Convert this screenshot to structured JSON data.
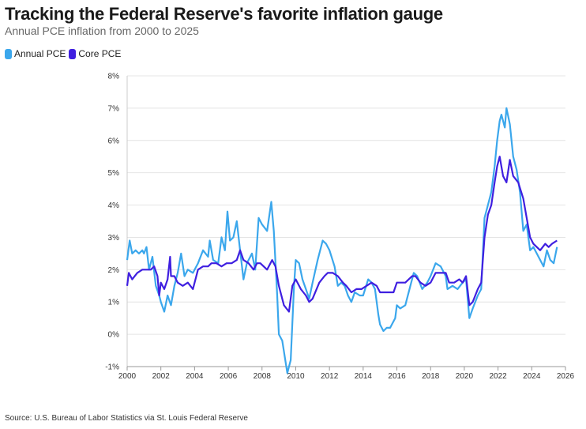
{
  "chart_data": {
    "type": "line",
    "title": "Tracking the Federal Reserve's favorite inflation gauge",
    "subtitle": "Annual PCE inflation from 2000 to 2025",
    "xlabel": "",
    "ylabel": "",
    "xlim": [
      2000,
      2026
    ],
    "ylim": [
      -1,
      8
    ],
    "x_ticks": [
      "2000",
      "2002",
      "2004",
      "2006",
      "2008",
      "2010",
      "2012",
      "2014",
      "2016",
      "2018",
      "2020",
      "2022",
      "2024",
      "2026"
    ],
    "y_ticks": [
      "-1%",
      "0%",
      "1%",
      "2%",
      "3%",
      "4%",
      "5%",
      "6%",
      "7%",
      "8%"
    ],
    "grid": true,
    "legend_position": "top-left",
    "source": "Source: U.S. Bureau of Labor Statistics via St. Louis Federal Reserve",
    "series": [
      {
        "name": "Annual PCE",
        "color": "#3ba7ec",
        "x": [
          2000.0,
          2000.15,
          2000.3,
          2000.5,
          2000.7,
          2000.9,
          2001.0,
          2001.15,
          2001.3,
          2001.5,
          2001.7,
          2001.9,
          2002.0,
          2002.2,
          2002.4,
          2002.6,
          2002.8,
          2003.0,
          2003.2,
          2003.4,
          2003.6,
          2003.9,
          2004.2,
          2004.5,
          2004.8,
          2004.9,
          2005.1,
          2005.4,
          2005.6,
          2005.8,
          2005.95,
          2006.1,
          2006.3,
          2006.5,
          2006.7,
          2006.9,
          2007.1,
          2007.4,
          2007.6,
          2007.8,
          2008.0,
          2008.3,
          2008.55,
          2008.7,
          2008.9,
          2009.0,
          2009.2,
          2009.5,
          2009.7,
          2009.9,
          2010.0,
          2010.2,
          2010.4,
          2010.6,
          2010.8,
          2011.0,
          2011.3,
          2011.6,
          2011.8,
          2012.0,
          2012.3,
          2012.5,
          2012.7,
          2012.9,
          2013.1,
          2013.3,
          2013.5,
          2013.8,
          2014.0,
          2014.3,
          2014.5,
          2014.7,
          2014.9,
          2015.0,
          2015.2,
          2015.4,
          2015.6,
          2015.9,
          2016.0,
          2016.2,
          2016.5,
          2016.8,
          2017.0,
          2017.2,
          2017.5,
          2017.8,
          2018.0,
          2018.3,
          2018.6,
          2018.9,
          2019.0,
          2019.3,
          2019.6,
          2019.9,
          2020.1,
          2020.3,
          2020.5,
          2020.8,
          2021.0,
          2021.2,
          2021.4,
          2021.6,
          2021.8,
          2021.95,
          2022.1,
          2022.2,
          2022.4,
          2022.5,
          2022.7,
          2022.9,
          2023.1,
          2023.3,
          2023.5,
          2023.7,
          2023.9,
          2024.1,
          2024.3,
          2024.5,
          2024.7,
          2024.9,
          2025.1,
          2025.3,
          2025.5
        ],
        "values": [
          2.3,
          2.9,
          2.5,
          2.6,
          2.5,
          2.6,
          2.5,
          2.7,
          2.0,
          2.4,
          1.5,
          1.2,
          1.0,
          0.7,
          1.2,
          0.9,
          1.5,
          1.9,
          2.5,
          1.8,
          2.0,
          1.9,
          2.2,
          2.6,
          2.4,
          2.9,
          2.3,
          2.2,
          3.0,
          2.6,
          3.8,
          2.9,
          3.0,
          3.5,
          2.6,
          1.7,
          2.2,
          2.5,
          2.0,
          3.6,
          3.4,
          3.2,
          4.1,
          3.2,
          1.2,
          0.0,
          -0.2,
          -1.2,
          -0.8,
          1.5,
          2.3,
          2.2,
          1.7,
          1.4,
          1.1,
          1.6,
          2.3,
          2.9,
          2.8,
          2.6,
          2.1,
          1.5,
          1.6,
          1.5,
          1.2,
          1.0,
          1.3,
          1.2,
          1.2,
          1.7,
          1.6,
          1.4,
          0.6,
          0.3,
          0.1,
          0.2,
          0.2,
          0.5,
          0.9,
          0.8,
          0.9,
          1.5,
          1.9,
          1.8,
          1.4,
          1.6,
          1.8,
          2.2,
          2.1,
          1.8,
          1.4,
          1.5,
          1.4,
          1.6,
          1.7,
          0.5,
          0.8,
          1.2,
          1.4,
          3.6,
          4.0,
          4.4,
          5.2,
          6.0,
          6.6,
          6.8,
          6.4,
          7.0,
          6.5,
          5.5,
          5.1,
          4.4,
          3.2,
          3.4,
          2.6,
          2.7,
          2.5,
          2.3,
          2.1,
          2.6,
          2.3,
          2.2,
          2.7
        ]
      },
      {
        "name": "Core PCE",
        "color": "#3f1fe0",
        "x": [
          2000.0,
          2000.1,
          2000.3,
          2000.6,
          2000.9,
          2001.2,
          2001.4,
          2001.6,
          2001.8,
          2001.9,
          2002.0,
          2002.2,
          2002.4,
          2002.55,
          2002.6,
          2002.8,
          2003.0,
          2003.3,
          2003.6,
          2003.9,
          2004.2,
          2004.5,
          2004.8,
          2005.0,
          2005.3,
          2005.6,
          2005.9,
          2006.2,
          2006.5,
          2006.7,
          2006.9,
          2007.2,
          2007.5,
          2007.7,
          2007.9,
          2008.3,
          2008.6,
          2008.8,
          2009.0,
          2009.3,
          2009.6,
          2009.8,
          2010.0,
          2010.3,
          2010.6,
          2010.8,
          2011.0,
          2011.4,
          2011.7,
          2011.9,
          2012.2,
          2012.5,
          2012.8,
          2013.0,
          2013.3,
          2013.6,
          2013.9,
          2014.2,
          2014.5,
          2014.8,
          2015.0,
          2015.4,
          2015.8,
          2016.0,
          2016.5,
          2016.9,
          2017.1,
          2017.4,
          2017.7,
          2018.0,
          2018.3,
          2018.6,
          2018.9,
          2019.1,
          2019.4,
          2019.7,
          2019.9,
          2020.1,
          2020.3,
          2020.5,
          2020.8,
          2021.0,
          2021.2,
          2021.4,
          2021.6,
          2021.8,
          2021.95,
          2022.1,
          2022.3,
          2022.5,
          2022.7,
          2022.9,
          2023.2,
          2023.5,
          2023.7,
          2023.9,
          2024.1,
          2024.3,
          2024.5,
          2024.8,
          2025.0,
          2025.2,
          2025.5
        ],
        "values": [
          1.5,
          1.9,
          1.7,
          1.9,
          2.0,
          2.0,
          2.0,
          2.1,
          1.8,
          1.2,
          1.6,
          1.4,
          1.7,
          2.4,
          1.8,
          1.8,
          1.6,
          1.5,
          1.6,
          1.4,
          2.0,
          2.1,
          2.1,
          2.2,
          2.2,
          2.1,
          2.2,
          2.2,
          2.3,
          2.6,
          2.3,
          2.2,
          2.0,
          2.2,
          2.2,
          2.0,
          2.3,
          2.1,
          1.5,
          0.9,
          0.7,
          1.5,
          1.7,
          1.4,
          1.2,
          1.0,
          1.1,
          1.6,
          1.8,
          1.9,
          1.9,
          1.8,
          1.6,
          1.5,
          1.3,
          1.4,
          1.4,
          1.5,
          1.6,
          1.5,
          1.3,
          1.3,
          1.3,
          1.6,
          1.6,
          1.8,
          1.8,
          1.6,
          1.5,
          1.6,
          1.9,
          1.9,
          1.9,
          1.6,
          1.6,
          1.7,
          1.6,
          1.8,
          0.9,
          1.0,
          1.4,
          1.6,
          3.0,
          3.7,
          4.0,
          4.7,
          5.2,
          5.5,
          4.9,
          4.7,
          5.4,
          4.9,
          4.7,
          4.2,
          3.6,
          3.0,
          2.8,
          2.7,
          2.6,
          2.8,
          2.7,
          2.8,
          2.9
        ]
      }
    ]
  }
}
